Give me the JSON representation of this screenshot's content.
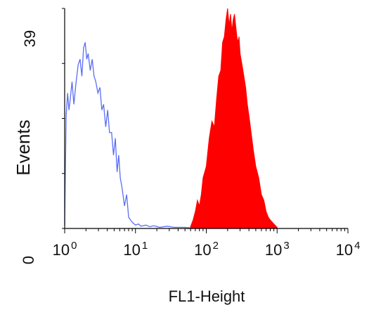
{
  "chart_data": {
    "type": "area",
    "xscale": "log",
    "x_tick_labels": [
      {
        "base": "10",
        "exp": "0"
      },
      {
        "base": "10",
        "exp": "1"
      },
      {
        "base": "10",
        "exp": "2"
      },
      {
        "base": "10",
        "exp": "3"
      },
      {
        "base": "10",
        "exp": "4"
      }
    ],
    "xlim": [
      1,
      10000
    ],
    "ylim": [
      0,
      39
    ],
    "y_tick_labels": [
      "0",
      "39"
    ],
    "xlabel": "FL1-Height",
    "ylabel": "Events",
    "grid": false,
    "series": [
      {
        "style": "outline",
        "color": "#5b6ef5",
        "x": [
          1.0,
          1.05,
          1.1,
          1.15,
          1.2,
          1.27,
          1.35,
          1.45,
          1.55,
          1.65,
          1.75,
          1.85,
          1.95,
          2.05,
          2.15,
          2.3,
          2.45,
          2.6,
          2.75,
          2.95,
          3.15,
          3.35,
          3.55,
          3.8,
          4.05,
          4.3,
          4.6,
          4.9,
          5.2,
          5.5,
          5.8,
          6.1,
          6.5,
          7.0,
          7.5,
          8.0,
          8.5,
          9.2,
          10.0,
          11.0,
          12.0,
          14.0,
          16.0,
          18.0,
          22.0,
          28.0,
          35.0,
          50.0,
          60.0
        ],
        "y": [
          0.6,
          20,
          24,
          21,
          23,
          26,
          22,
          26,
          29,
          30,
          27,
          32,
          33,
          30,
          31,
          28,
          30,
          27,
          26,
          24,
          25,
          21,
          22,
          18,
          21,
          17,
          17,
          13,
          16,
          10,
          13,
          9,
          7,
          4,
          6,
          2,
          1.5,
          1.0,
          0.6,
          0.8,
          0.4,
          0.6,
          0.3,
          0.5,
          0.2,
          0.4,
          0.2,
          0.2,
          0.1
        ]
      },
      {
        "style": "filled",
        "color": "#ff0000",
        "x": [
          60,
          65,
          70,
          75,
          80,
          85,
          90,
          100,
          110,
          120,
          130,
          140,
          150,
          160,
          170,
          180,
          190,
          200,
          210,
          220,
          230,
          240,
          250,
          260,
          270,
          280,
          290,
          300,
          320,
          340,
          360,
          380,
          400,
          430,
          460,
          500,
          550,
          600,
          650,
          700,
          750,
          800,
          900,
          1000
        ],
        "y": [
          0.3,
          1.5,
          3,
          5,
          4,
          6,
          9,
          11,
          16,
          19,
          18,
          23,
          27,
          28,
          33,
          34,
          37,
          39,
          36,
          38,
          35,
          37,
          38,
          36,
          34,
          33,
          34,
          31,
          29,
          27,
          25,
          22,
          20,
          17,
          14,
          11,
          9,
          6,
          5,
          3,
          2,
          1.5,
          0.8,
          0.2
        ]
      }
    ]
  }
}
